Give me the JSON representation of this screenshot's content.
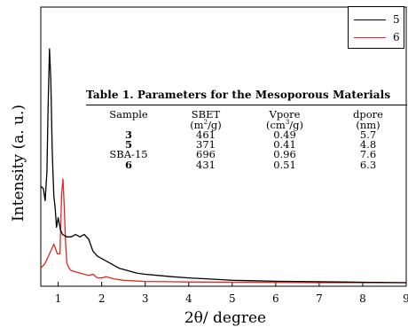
{
  "chart_data": {
    "type": "line",
    "xlabel": "2θ/ degree",
    "ylabel": "Intensity (a. u.)",
    "xlim": [
      0.6,
      9
    ],
    "xticks": [
      1,
      2,
      3,
      4,
      5,
      6,
      7,
      8,
      9
    ],
    "grid": false,
    "legend_position": "top-right",
    "series": [
      {
        "name": "5",
        "color": "#000000",
        "x": [
          0.6,
          0.66,
          0.7,
          0.74,
          0.77,
          0.8,
          0.83,
          0.86,
          0.88,
          0.9,
          0.93,
          0.96,
          1.0,
          1.05,
          1.1,
          1.2,
          1.3,
          1.4,
          1.5,
          1.6,
          1.7,
          1.8,
          1.9,
          2.0,
          2.2,
          2.4,
          2.6,
          2.8,
          3.0,
          3.3,
          3.6,
          4.0,
          4.5,
          5.0,
          5.5,
          6.0,
          6.5,
          7.0,
          7.5,
          8.0,
          9.0
        ],
        "y": [
          0.4,
          0.39,
          0.34,
          0.46,
          0.74,
          0.97,
          0.84,
          0.56,
          0.46,
          0.36,
          0.31,
          0.23,
          0.27,
          0.22,
          0.2,
          0.19,
          0.19,
          0.2,
          0.19,
          0.2,
          0.18,
          0.13,
          0.11,
          0.1,
          0.08,
          0.06,
          0.05,
          0.04,
          0.035,
          0.03,
          0.025,
          0.02,
          0.015,
          0.01,
          0.008,
          0.006,
          0.005,
          0.004,
          0.003,
          0.002,
          0.0
        ]
      },
      {
        "name": "6",
        "color": "#e8251e",
        "x": [
          0.6,
          0.7,
          0.8,
          0.9,
          0.98,
          1.04,
          1.08,
          1.11,
          1.14,
          1.17,
          1.2,
          1.25,
          1.3,
          1.4,
          1.5,
          1.6,
          1.7,
          1.8,
          1.9,
          2.0,
          2.1,
          2.2,
          2.3,
          2.5,
          2.7,
          3.0,
          3.5,
          4.0,
          5.0,
          6.0,
          7.0,
          8.0,
          9.0
        ],
        "y": [
          0.06,
          0.08,
          0.12,
          0.16,
          0.12,
          0.12,
          0.37,
          0.43,
          0.31,
          0.16,
          0.08,
          0.06,
          0.05,
          0.045,
          0.04,
          0.035,
          0.03,
          0.035,
          0.02,
          0.02,
          0.025,
          0.02,
          0.015,
          0.01,
          0.008,
          0.005,
          0.004,
          0.003,
          0.002,
          0.001,
          0.0,
          0.0,
          0.0
        ]
      }
    ],
    "annotations": [
      {
        "type": "table",
        "title": "Table 1. Parameters for the Mesoporous Materials",
        "columns": [
          {
            "name": "Sample",
            "unit": ""
          },
          {
            "name": "SBET",
            "unit_base": "(m",
            "unit_sup": "2",
            "unit_tail": "/g)"
          },
          {
            "name": "Vpore",
            "unit_base": "(cm",
            "unit_sup": "3",
            "unit_tail": "/g)"
          },
          {
            "name": "dpore",
            "unit_base": "(nm)",
            "unit_sup": "",
            "unit_tail": ""
          }
        ],
        "rows": [
          [
            "3",
            "461",
            "0.49",
            "5.7"
          ],
          [
            "5",
            "371",
            "0.41",
            "4.8"
          ],
          [
            "SBA-15",
            "696",
            "0.96",
            "7.6"
          ],
          [
            "6",
            "431",
            "0.51",
            "6.3"
          ]
        ]
      }
    ]
  }
}
